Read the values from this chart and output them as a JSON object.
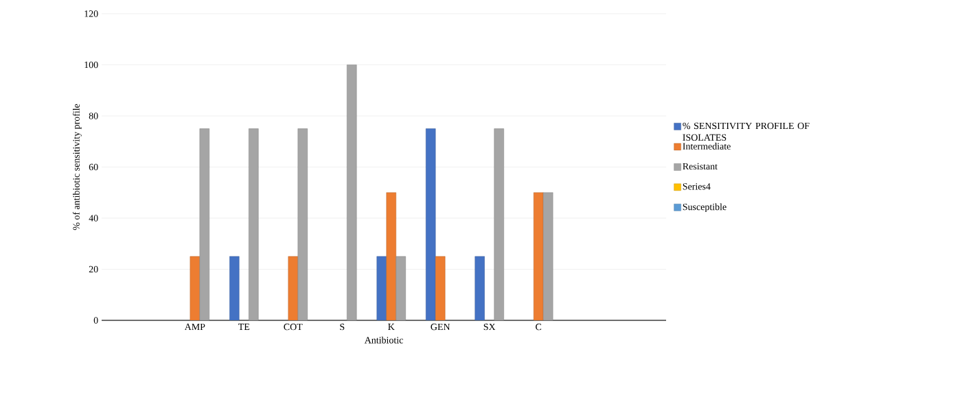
{
  "chart_data": {
    "type": "bar",
    "xlabel": "Antibiotic",
    "ylabel": "% of antibiotic sensitivity profile",
    "categories": [
      "AMP",
      "TE",
      "COT",
      "S",
      "K",
      "GEN",
      "SX",
      "C"
    ],
    "series": [
      {
        "name": "% SENSITIVITY PROFILE OF ISOLATES",
        "color": "#4472c4",
        "values": [
          null,
          25,
          null,
          null,
          25,
          75,
          25,
          null
        ]
      },
      {
        "name": "Intermediate",
        "color": "#ed7d31",
        "values": [
          25,
          null,
          25,
          null,
          50,
          25,
          null,
          50
        ]
      },
      {
        "name": "Resistant",
        "color": "#a5a5a5",
        "values": [
          75,
          75,
          75,
          100,
          25,
          null,
          75,
          50
        ]
      },
      {
        "name": "Series4",
        "color": "#ffc000",
        "values": [
          null,
          null,
          null,
          null,
          null,
          null,
          null,
          null
        ]
      },
      {
        "name": "Susceptible",
        "color": "#5b9bd5",
        "values": [
          null,
          null,
          null,
          null,
          null,
          null,
          null,
          null
        ]
      }
    ],
    "ylim": [
      0,
      120
    ],
    "yticks": [
      0,
      20,
      40,
      60,
      80,
      100,
      120
    ],
    "grid": "y",
    "legend": "right"
  }
}
